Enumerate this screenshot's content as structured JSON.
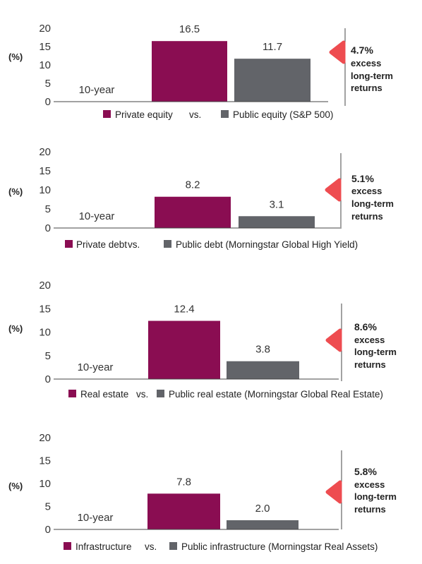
{
  "colors": {
    "private": "#8a0d52",
    "public": "#626469",
    "accent": "#ee4c50",
    "axis": "#444444"
  },
  "chart_data": [
    {
      "type": "bar",
      "ylabel": "(%)",
      "ylim": [
        0,
        20
      ],
      "yticks": [
        0,
        5,
        10,
        15,
        20
      ],
      "categories": [
        "10-year"
      ],
      "series": [
        {
          "name": "Private equity",
          "values": [
            16.5
          ],
          "label": "16.5"
        },
        {
          "name": "Public equity (S&P 500)",
          "values": [
            11.7
          ],
          "label": "11.7"
        }
      ],
      "legend_sep": "vs.",
      "annotation": {
        "value": "4.7%",
        "lines": [
          "excess",
          "long-term",
          "returns"
        ]
      }
    },
    {
      "type": "bar",
      "ylabel": "(%)",
      "ylim": [
        0,
        20
      ],
      "yticks": [
        0,
        5,
        10,
        15,
        20
      ],
      "categories": [
        "10-year"
      ],
      "series": [
        {
          "name": "Private debt",
          "values": [
            8.2
          ],
          "label": "8.2"
        },
        {
          "name": "Public debt (Morningstar Global High Yield)",
          "values": [
            3.1
          ],
          "label": "3.1"
        }
      ],
      "legend_sep": "vs.",
      "annotation": {
        "value": "5.1%",
        "lines": [
          "excess",
          "long-term",
          "returns"
        ]
      }
    },
    {
      "type": "bar",
      "ylabel": "(%)",
      "ylim": [
        0,
        20
      ],
      "yticks": [
        0,
        5,
        10,
        15,
        20
      ],
      "categories": [
        "10-year"
      ],
      "series": [
        {
          "name": "Real estate",
          "values": [
            12.4
          ],
          "label": "12.4"
        },
        {
          "name": "Public real estate (Morningstar Global Real Estate)",
          "values": [
            3.8
          ],
          "label": "3.8"
        }
      ],
      "legend_sep": "vs.",
      "annotation": {
        "value": "8.6%",
        "lines": [
          "excess",
          "long-term",
          "returns"
        ]
      }
    },
    {
      "type": "bar",
      "ylabel": "(%)",
      "ylim": [
        0,
        20
      ],
      "yticks": [
        0,
        5,
        10,
        15,
        20
      ],
      "categories": [
        "10-year"
      ],
      "series": [
        {
          "name": "Infrastructure",
          "values": [
            7.8
          ],
          "label": "7.8"
        },
        {
          "name": "Public infrastructure (Morningstar Real Assets)",
          "values": [
            2.0
          ],
          "label": "2.0"
        }
      ],
      "legend_sep": "vs.",
      "annotation": {
        "value": "5.8%",
        "lines": [
          "excess",
          "long-term",
          "returns"
        ]
      }
    }
  ]
}
